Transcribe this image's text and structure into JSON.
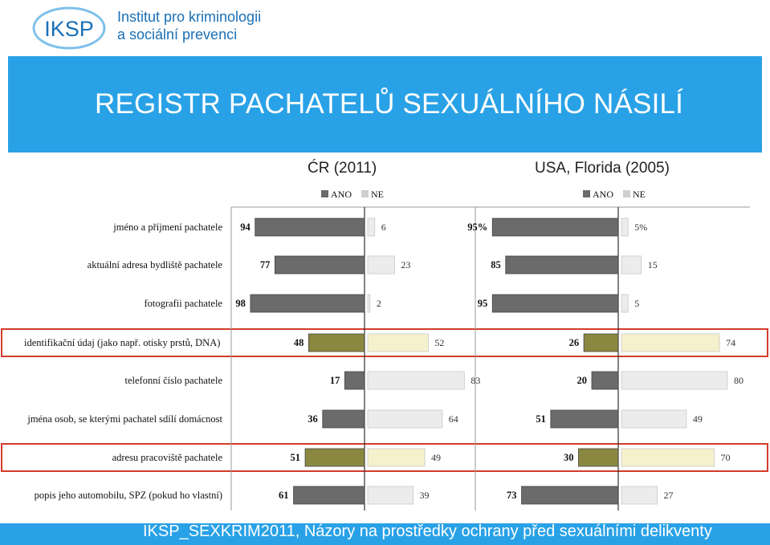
{
  "header": {
    "logo_text": "IKSP",
    "org_line1": "Institut pro kriminologii",
    "org_line2": "a sociální prevenci",
    "title": "REGISTR PACHATELŮ SEXUÁLNÍHO NÁSILÍ"
  },
  "footer": {
    "text": "IKSP_SEXKRIM2011,  Názory na prostředky ochrany před sexuálními delikventy"
  },
  "colors": {
    "title_band": "#29a1e6",
    "ano_bar": "#6b6b6b",
    "ne_bar": "#ececec",
    "highlight_ano": "#8a8740",
    "highlight_ne": "#f4f1cc",
    "highlight_border": "#d33b2a"
  },
  "chart_data": [
    {
      "type": "bar",
      "orientation": "horizontal-diverging",
      "title": "ĆR (2011)",
      "legend": [
        "ANO",
        "NE"
      ],
      "legend_position": "top",
      "categories": [
        "jméno a příjmení pachatele",
        "aktuální adresa bydliště pachatele",
        "fotografii pachatele",
        "identifikační údaj (jako např. otisky prstů, DNA)",
        "telefonní číslo pachatele",
        "jména osob, se kterými pachatel sdílí domácnost",
        "adresu pracoviště pachatele",
        "popis jeho automobilu, SPZ (pokud ho vlastní)"
      ],
      "series": [
        {
          "name": "ANO",
          "values": [
            94,
            77,
            98,
            48,
            17,
            36,
            51,
            61
          ],
          "labels": [
            "94",
            "77",
            "98",
            "48",
            "17",
            "36",
            "51",
            "61"
          ]
        },
        {
          "name": "NE",
          "values": [
            6,
            23,
            2,
            52,
            83,
            64,
            49,
            39
          ],
          "labels": [
            "6",
            "23",
            "2",
            "52",
            "83",
            "64",
            "49",
            "39"
          ]
        }
      ],
      "highlighted_rows": [
        3,
        6
      ]
    },
    {
      "type": "bar",
      "orientation": "horizontal-diverging",
      "title": "USA, Florida (2005)",
      "legend": [
        "ANO",
        "NE"
      ],
      "legend_position": "top",
      "series": [
        {
          "name": "ANO",
          "values": [
            95,
            85,
            95,
            26,
            20,
            51,
            30,
            73
          ],
          "labels": [
            "95%",
            "85",
            "95",
            "26",
            "20",
            "51",
            "30",
            "73"
          ]
        },
        {
          "name": "NE",
          "values": [
            5,
            15,
            5,
            74,
            80,
            49,
            70,
            27
          ],
          "labels": [
            "5%",
            "15",
            "5",
            "74",
            "80",
            "49",
            "70",
            "27"
          ]
        }
      ],
      "highlighted_rows": [
        3,
        6
      ]
    }
  ]
}
